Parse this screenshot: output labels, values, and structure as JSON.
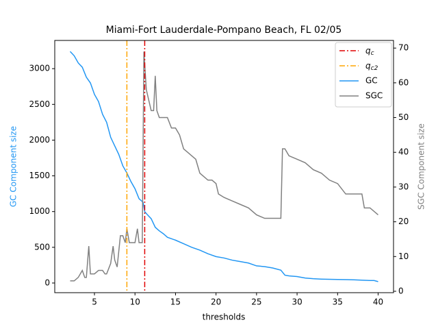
{
  "chart_data": {
    "type": "line",
    "title": "Miami-Fort Lauderdale-Pompano Beach, FL 02/05",
    "xlabel": "thresholds",
    "ylabel": "GC Component size",
    "y2label": "SGC Component size",
    "xlim": [
      0.1,
      41.9
    ],
    "xticks": [
      5,
      10,
      15,
      20,
      25,
      30,
      35,
      40
    ],
    "ylim": [
      -135,
      3395
    ],
    "yticks": [
      0,
      500,
      1000,
      1500,
      2000,
      2500,
      3000
    ],
    "y2lim": [
      -0.4,
      72.2
    ],
    "y2ticks": [
      0,
      10,
      20,
      30,
      40,
      50,
      60,
      70
    ],
    "vlines": [
      {
        "label": "q",
        "sub": "c",
        "x": 11.2,
        "color": "#e00000"
      },
      {
        "label": "q",
        "sub": "c2",
        "x": 9.0,
        "color": "#ffa500"
      }
    ],
    "series": [
      {
        "name": "GC",
        "color": "#2196f3",
        "x": [
          2,
          2.5,
          3,
          3.5,
          4,
          4.5,
          5,
          5.5,
          6,
          6.5,
          7,
          7.5,
          8,
          8.5,
          9,
          9.5,
          10,
          10.5,
          11,
          11.2,
          11.5,
          12,
          12.5,
          13,
          13.5,
          14,
          15,
          16,
          17,
          18,
          19,
          20,
          21,
          22,
          23,
          24,
          25,
          26,
          27,
          28,
          28.5,
          29,
          30,
          31,
          32,
          33,
          35,
          37,
          38,
          39,
          39.5,
          40
        ],
        "values": [
          3240,
          3180,
          3080,
          3020,
          2880,
          2800,
          2640,
          2540,
          2360,
          2250,
          2040,
          1920,
          1800,
          1640,
          1540,
          1420,
          1320,
          1180,
          1130,
          1000,
          960,
          900,
          780,
          730,
          690,
          640,
          600,
          550,
          500,
          460,
          410,
          370,
          350,
          320,
          300,
          280,
          240,
          230,
          210,
          180,
          110,
          100,
          90,
          70,
          60,
          55,
          50,
          45,
          40,
          35,
          35,
          20
        ]
      },
      {
        "name": "SGC",
        "color": "#808080",
        "axis": "y2",
        "x": [
          2,
          2.5,
          3,
          3.5,
          3.8,
          4,
          4.3,
          4.5,
          5,
          5.5,
          6,
          6.3,
          6.5,
          7,
          7.3,
          7.5,
          7.8,
          8.2,
          8.5,
          8.8,
          9,
          9.3,
          9.7,
          10,
          10.3,
          10.5,
          10.9,
          11.1,
          11.4,
          12,
          12.3,
          12.5,
          12.7,
          13,
          14,
          14.5,
          15,
          15.5,
          16,
          16.5,
          17,
          17.5,
          18,
          18.5,
          19,
          19.5,
          20,
          20.3,
          21,
          22,
          23,
          24,
          25,
          26,
          27,
          28,
          28.2,
          28.5,
          29,
          30,
          31,
          32,
          33,
          34,
          35,
          36,
          37,
          38,
          38.3,
          39,
          40
        ],
        "values": [
          3,
          3,
          4,
          6,
          4,
          4,
          13,
          5,
          5,
          6,
          6,
          5,
          5,
          8,
          13,
          9,
          7,
          16,
          16,
          14,
          18,
          14,
          14,
          14,
          18,
          14,
          14,
          69,
          58,
          52,
          52,
          62,
          52,
          50,
          50,
          47,
          47,
          45,
          41,
          40,
          39,
          38,
          34,
          33,
          32,
          32,
          31,
          28,
          27,
          26,
          25,
          24,
          22,
          21,
          21,
          21,
          41,
          41,
          39,
          38,
          37,
          35,
          34,
          32,
          31,
          28,
          28,
          28,
          24,
          24,
          22
        ]
      }
    ]
  }
}
